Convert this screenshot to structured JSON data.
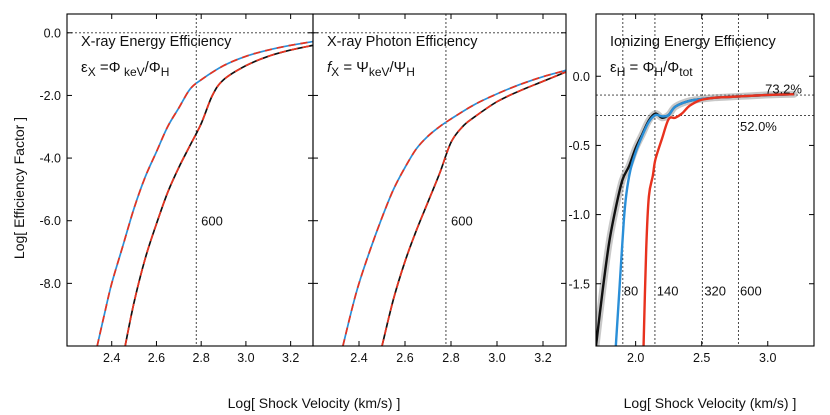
{
  "chart_data": [
    {
      "type": "line",
      "title": "X-ray Energy Efficiency",
      "formula": {
        "lhs": "ε",
        "lhs_sub": "X",
        "mid": " =Φ",
        "mid_sub": " keV",
        "slash": "/Φ",
        "rhs_sub": "H"
      },
      "xlabel": "Log[ Shock Velocity (km/s) ]",
      "ylabel": "Log[ Efficiency Factor ]",
      "xlim": [
        2.2,
        3.3
      ],
      "ylim": [
        -10.0,
        0.6
      ],
      "xticks": [
        {
          "v": 2.4,
          "t": "2.4"
        },
        {
          "v": 2.6,
          "t": "2.6"
        },
        {
          "v": 2.8,
          "t": "2.8"
        },
        {
          "v": 3.0,
          "t": "3.0"
        },
        {
          "v": 3.2,
          "t": "3.2"
        }
      ],
      "yticks": [
        {
          "v": 0,
          "t": "0.0"
        },
        {
          "v": -2,
          "t": "-2.0"
        },
        {
          "v": -4,
          "t": "-4.0"
        },
        {
          "v": -6,
          "t": "-6.0"
        },
        {
          "v": -8,
          "t": "-8.0"
        }
      ],
      "hlines": [
        0
      ],
      "vlines": [
        2.778
      ],
      "annotations": [
        {
          "x": 2.8,
          "y": -6.0,
          "text": "600"
        }
      ],
      "series": [
        {
          "name": "upper-blue",
          "color": "#2a8fd8",
          "dash": false,
          "x": [
            2.335,
            2.37,
            2.4,
            2.45,
            2.5,
            2.55,
            2.6,
            2.65,
            2.7,
            2.75,
            2.8,
            2.9,
            3.0,
            3.1,
            3.2,
            3.3
          ],
          "y": [
            -10.0,
            -8.9,
            -8.0,
            -6.8,
            -5.6,
            -4.6,
            -3.8,
            -3.0,
            -2.4,
            -1.8,
            -1.5,
            -1.05,
            -0.75,
            -0.55,
            -0.4,
            -0.28
          ]
        },
        {
          "name": "upper-red",
          "color": "#e8321e",
          "dash": true,
          "x": [
            2.335,
            2.37,
            2.4,
            2.45,
            2.5,
            2.55,
            2.6,
            2.65,
            2.7,
            2.75,
            2.8,
            2.9,
            3.0,
            3.1,
            3.2,
            3.3
          ],
          "y": [
            -10.0,
            -8.9,
            -8.0,
            -6.8,
            -5.6,
            -4.6,
            -3.8,
            -3.0,
            -2.4,
            -1.8,
            -1.5,
            -1.05,
            -0.75,
            -0.55,
            -0.4,
            -0.28
          ]
        },
        {
          "name": "lower-black",
          "color": "#111111",
          "dash": false,
          "x": [
            2.46,
            2.5,
            2.55,
            2.6,
            2.65,
            2.7,
            2.75,
            2.8,
            2.85,
            2.9,
            3.0,
            3.1,
            3.2,
            3.3
          ],
          "y": [
            -10.0,
            -8.6,
            -7.2,
            -6.1,
            -5.1,
            -4.3,
            -3.6,
            -2.9,
            -2.0,
            -1.5,
            -1.05,
            -0.75,
            -0.55,
            -0.4
          ]
        },
        {
          "name": "lower-red",
          "color": "#e8321e",
          "dash": true,
          "x": [
            2.46,
            2.5,
            2.55,
            2.6,
            2.65,
            2.7,
            2.75,
            2.8,
            2.85,
            2.9,
            3.0,
            3.1,
            3.2,
            3.3
          ],
          "y": [
            -10.0,
            -8.6,
            -7.2,
            -6.1,
            -5.1,
            -4.3,
            -3.6,
            -2.9,
            -2.0,
            -1.5,
            -1.05,
            -0.75,
            -0.55,
            -0.4
          ]
        }
      ]
    },
    {
      "type": "line",
      "title": "X-ray Photon Efficiency",
      "formula": {
        "lhs": "f",
        "lhs_sub": "X",
        "mid": " = Ψ",
        "mid_sub": "keV",
        "slash": "/Ψ",
        "rhs_sub": "H"
      },
      "xlabel": "",
      "ylabel": "",
      "xlim": [
        2.2,
        3.3
      ],
      "ylim": [
        -10.0,
        0.6
      ],
      "xticks": [
        {
          "v": 2.4,
          "t": "2.4"
        },
        {
          "v": 2.6,
          "t": "2.6"
        },
        {
          "v": 2.8,
          "t": "2.8"
        },
        {
          "v": 3.0,
          "t": "3.0"
        },
        {
          "v": 3.2,
          "t": "3.2"
        }
      ],
      "yticks": [
        {
          "v": 0,
          "t": ""
        },
        {
          "v": -2,
          "t": ""
        },
        {
          "v": -4,
          "t": ""
        },
        {
          "v": -6,
          "t": ""
        },
        {
          "v": -8,
          "t": ""
        }
      ],
      "hlines": [
        0
      ],
      "vlines": [
        2.778
      ],
      "annotations": [
        {
          "x": 2.8,
          "y": -6.0,
          "text": "600"
        }
      ],
      "series": [
        {
          "name": "upper-blue",
          "color": "#2a8fd8",
          "dash": false,
          "x": [
            2.33,
            2.37,
            2.4,
            2.45,
            2.5,
            2.55,
            2.6,
            2.65,
            2.7,
            2.75,
            2.8,
            2.9,
            3.0,
            3.1,
            3.2,
            3.3
          ],
          "y": [
            -10.0,
            -8.8,
            -8.0,
            -6.9,
            -5.9,
            -5.0,
            -4.3,
            -3.7,
            -3.3,
            -3.0,
            -2.75,
            -2.3,
            -1.95,
            -1.65,
            -1.4,
            -1.2
          ]
        },
        {
          "name": "upper-red",
          "color": "#e8321e",
          "dash": true,
          "x": [
            2.33,
            2.37,
            2.4,
            2.45,
            2.5,
            2.55,
            2.6,
            2.65,
            2.7,
            2.75,
            2.8,
            2.9,
            3.0,
            3.1,
            3.2,
            3.3
          ],
          "y": [
            -10.0,
            -8.8,
            -8.0,
            -6.9,
            -5.9,
            -5.0,
            -4.3,
            -3.7,
            -3.3,
            -3.0,
            -2.75,
            -2.3,
            -1.95,
            -1.65,
            -1.4,
            -1.2
          ]
        },
        {
          "name": "lower-black",
          "color": "#111111",
          "dash": false,
          "x": [
            2.5,
            2.55,
            2.6,
            2.65,
            2.7,
            2.75,
            2.8,
            2.85,
            2.9,
            3.0,
            3.1,
            3.2,
            3.3
          ],
          "y": [
            -10.0,
            -8.5,
            -7.3,
            -6.3,
            -5.4,
            -4.5,
            -3.5,
            -3.0,
            -2.7,
            -2.2,
            -1.85,
            -1.55,
            -1.25
          ]
        },
        {
          "name": "lower-red",
          "color": "#e8321e",
          "dash": true,
          "x": [
            2.5,
            2.55,
            2.6,
            2.65,
            2.7,
            2.75,
            2.8,
            2.85,
            2.9,
            3.0,
            3.1,
            3.2,
            3.3
          ],
          "y": [
            -10.0,
            -8.5,
            -7.3,
            -6.3,
            -5.4,
            -4.5,
            -3.5,
            -3.0,
            -2.7,
            -2.2,
            -1.85,
            -1.55,
            -1.25
          ]
        }
      ]
    },
    {
      "type": "line",
      "title": "Ionizing Energy Efficiency",
      "formula": {
        "lhs": "ε",
        "lhs_sub": "H",
        "mid": " = Φ",
        "mid_sub": "H",
        "slash": "/Φ",
        "rhs_sub": "tot"
      },
      "xlabel": "Log[ Shock Velocity (km/s) ]",
      "ylabel": "",
      "xlim": [
        1.7,
        3.35
      ],
      "ylim": [
        -1.95,
        0.45
      ],
      "xticks": [
        {
          "v": 2.0,
          "t": "2.0"
        },
        {
          "v": 2.5,
          "t": "2.5"
        },
        {
          "v": 3.0,
          "t": "3.0"
        }
      ],
      "yticks": [
        {
          "v": 0.0,
          "t": "0.0"
        },
        {
          "v": -0.5,
          "t": "-0.5"
        },
        {
          "v": -1.0,
          "t": "-1.0"
        },
        {
          "v": -1.5,
          "t": "-1.5"
        }
      ],
      "hlines": [
        -0.136,
        -0.284
      ],
      "vlines": [
        1.903,
        2.146,
        2.505,
        2.778
      ],
      "annotations": [
        {
          "x": 1.91,
          "y": -1.55,
          "text": "80"
        },
        {
          "x": 2.16,
          "y": -1.55,
          "text": "140"
        },
        {
          "x": 2.52,
          "y": -1.55,
          "text": "320"
        },
        {
          "x": 2.79,
          "y": -1.55,
          "text": "600"
        },
        {
          "x": 2.98,
          "y": -0.09,
          "text": "73.2%"
        },
        {
          "x": 2.79,
          "y": -0.36,
          "text": "52.0%"
        }
      ],
      "series": [
        {
          "name": "black",
          "color": "#111111",
          "dash": false,
          "band": true,
          "x": [
            1.7,
            1.75,
            1.8,
            1.85,
            1.9,
            1.95,
            2.0,
            2.05,
            2.1,
            2.15,
            2.2,
            2.25,
            2.3,
            2.4,
            2.5,
            2.6,
            2.7,
            2.8,
            2.9,
            3.0,
            3.1,
            3.2
          ],
          "y": [
            -1.95,
            -1.55,
            -1.2,
            -0.95,
            -0.75,
            -0.65,
            -0.52,
            -0.42,
            -0.32,
            -0.27,
            -0.3,
            -0.28,
            -0.22,
            -0.18,
            -0.165,
            -0.155,
            -0.15,
            -0.145,
            -0.14,
            -0.135,
            -0.132,
            -0.13
          ]
        },
        {
          "name": "blue",
          "color": "#2a8fd8",
          "dash": false,
          "x": [
            1.85,
            1.88,
            1.91,
            1.93,
            1.96,
            2.0,
            2.05,
            2.1,
            2.15,
            2.2,
            2.25,
            2.3,
            2.4,
            2.5,
            2.6,
            2.7,
            2.8,
            2.9,
            3.0,
            3.1,
            3.2
          ],
          "y": [
            -1.95,
            -1.5,
            -1.05,
            -0.85,
            -0.68,
            -0.55,
            -0.43,
            -0.33,
            -0.28,
            -0.29,
            -0.28,
            -0.22,
            -0.18,
            -0.165,
            -0.155,
            -0.15,
            -0.145,
            -0.14,
            -0.135,
            -0.132,
            -0.13
          ]
        },
        {
          "name": "red",
          "color": "#e8321e",
          "dash": false,
          "x": [
            2.06,
            2.08,
            2.1,
            2.13,
            2.15,
            2.2,
            2.25,
            2.3,
            2.35,
            2.4,
            2.45,
            2.5,
            2.6,
            2.7,
            2.8,
            2.9,
            3.0,
            3.1,
            3.2
          ],
          "y": [
            -1.95,
            -1.25,
            -0.87,
            -0.72,
            -0.6,
            -0.45,
            -0.31,
            -0.3,
            -0.27,
            -0.22,
            -0.19,
            -0.17,
            -0.155,
            -0.15,
            -0.145,
            -0.14,
            -0.135,
            -0.132,
            -0.13
          ]
        }
      ]
    }
  ]
}
